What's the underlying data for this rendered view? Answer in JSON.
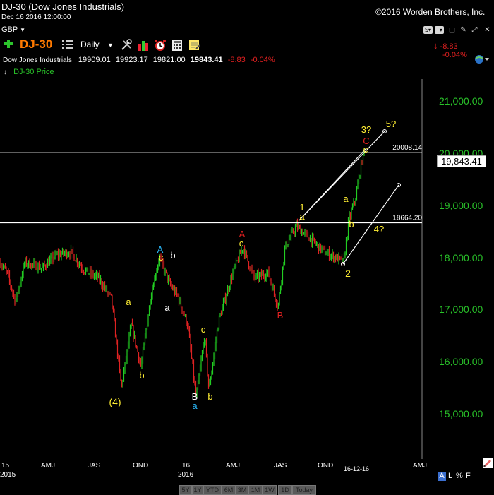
{
  "window": {
    "title": "DJ-30 (Dow Jones Industrials)",
    "copyright": "©2016 Worden Brothers, Inc.",
    "date": "Dec 16 2016 12:00:00"
  },
  "currency": "GBP",
  "symbol_bar": {
    "add_icon": "plus-icon",
    "symbol": "DJ-30",
    "list_icon": "list-icon",
    "period": "Daily"
  },
  "quote": {
    "name": "Dow Jones Industrials",
    "open": "19909.01",
    "high": "19923.17",
    "low": "19821.00",
    "last": "19843.41",
    "change": "-8.83",
    "change_pct": "-0.04%",
    "right_change": "-8.83",
    "right_change_pct": "-0.04%"
  },
  "series_label": "DJ-30 Price",
  "chart_data": {
    "type": "candlestick",
    "title": "DJ-30 (Dow Jones Industrials)",
    "series": [
      {
        "name": "DJ-30 Price",
        "last": 19843.41
      }
    ],
    "y_ticks": [
      "21,000.00",
      "20,000.00",
      "19,000.00",
      "18,000.00",
      "17,000.00",
      "16,000.00",
      "15,000.00"
    ],
    "ylim": [
      14400,
      21900
    ],
    "x_ticks_top": [
      "15",
      "AMJ",
      "JAS",
      "OND",
      "16",
      "AMJ",
      "JAS",
      "OND",
      "16-12-16",
      "AMJ"
    ],
    "x_ticks_bottom": [
      "2015",
      "2016"
    ],
    "horizontal_lines": [
      {
        "label": "20008.14",
        "value": 20008.14
      },
      {
        "label": "18664.20",
        "value": 18664.2
      }
    ],
    "current_price_label": "19,843.41",
    "wave_labels": [
      "(4)",
      "a",
      "b",
      "A",
      "c",
      "b",
      "a",
      "c",
      "B",
      "a",
      "b",
      "A",
      "c",
      "B",
      "1",
      "a",
      "2",
      "a",
      "b",
      "3?",
      "C",
      "c",
      "5?",
      "4?"
    ],
    "colors": {
      "up": "#22cc22",
      "down": "#dd2222",
      "background": "#000000",
      "lines": "#ffffff"
    }
  },
  "bottom_bar": {
    "ranges": [
      "5Y",
      "1Y",
      "YTD",
      "6M",
      "3M",
      "1M",
      "1W",
      "1D",
      "Today"
    ],
    "scale_buttons": [
      "A",
      "L",
      "%",
      "F"
    ]
  },
  "colors": {
    "accent_orange": "#ff7a00",
    "green": "#29c229",
    "red": "#e02020",
    "yellow": "#ffee33"
  }
}
